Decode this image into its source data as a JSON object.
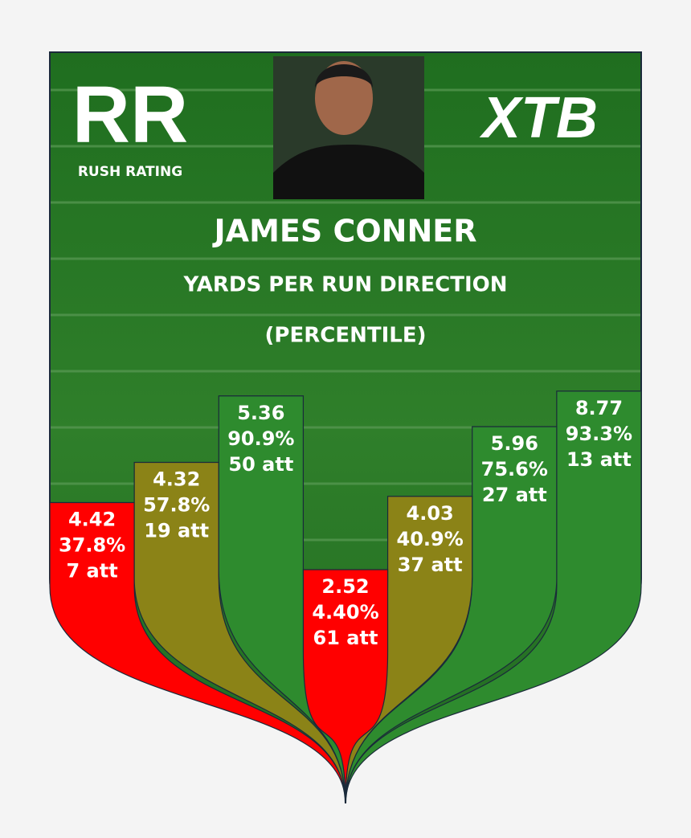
{
  "branding": {
    "left_logo": "RR",
    "left_logo_caption": "RUSH RATING",
    "right_logo": "XTB"
  },
  "chart_data": {
    "type": "bar",
    "title": "JAMES CONNER",
    "subtitle": "YARDS PER RUN DIRECTION",
    "note": "(PERCENTILE)",
    "bars": [
      {
        "yards": 4.42,
        "percentile": 37.8,
        "percentile_label": "37.8%",
        "attempts": 7,
        "attempts_label": "7 att",
        "color": "#ff0000"
      },
      {
        "yards": 4.32,
        "percentile": 57.8,
        "percentile_label": "57.8%",
        "attempts": 19,
        "attempts_label": "19 att",
        "color": "#8b8317"
      },
      {
        "yards": 5.36,
        "percentile": 90.9,
        "percentile_label": "90.9%",
        "attempts": 50,
        "attempts_label": "50 att",
        "color": "#2e8b2e"
      },
      {
        "yards": 2.52,
        "percentile": 4.4,
        "percentile_label": "4.40%",
        "attempts": 61,
        "attempts_label": "61 att",
        "color": "#ff0000"
      },
      {
        "yards": 4.03,
        "percentile": 40.9,
        "percentile_label": "40.9%",
        "attempts": 37,
        "attempts_label": "37 att",
        "color": "#8b8317"
      },
      {
        "yards": 5.96,
        "percentile": 75.6,
        "percentile_label": "75.6%",
        "attempts": 27,
        "attempts_label": "27 att",
        "color": "#2e8b2e"
      },
      {
        "yards": 8.77,
        "percentile": 93.3,
        "percentile_label": "93.3%",
        "attempts": 13,
        "attempts_label": "13 att",
        "color": "#2e8b2e"
      }
    ]
  }
}
